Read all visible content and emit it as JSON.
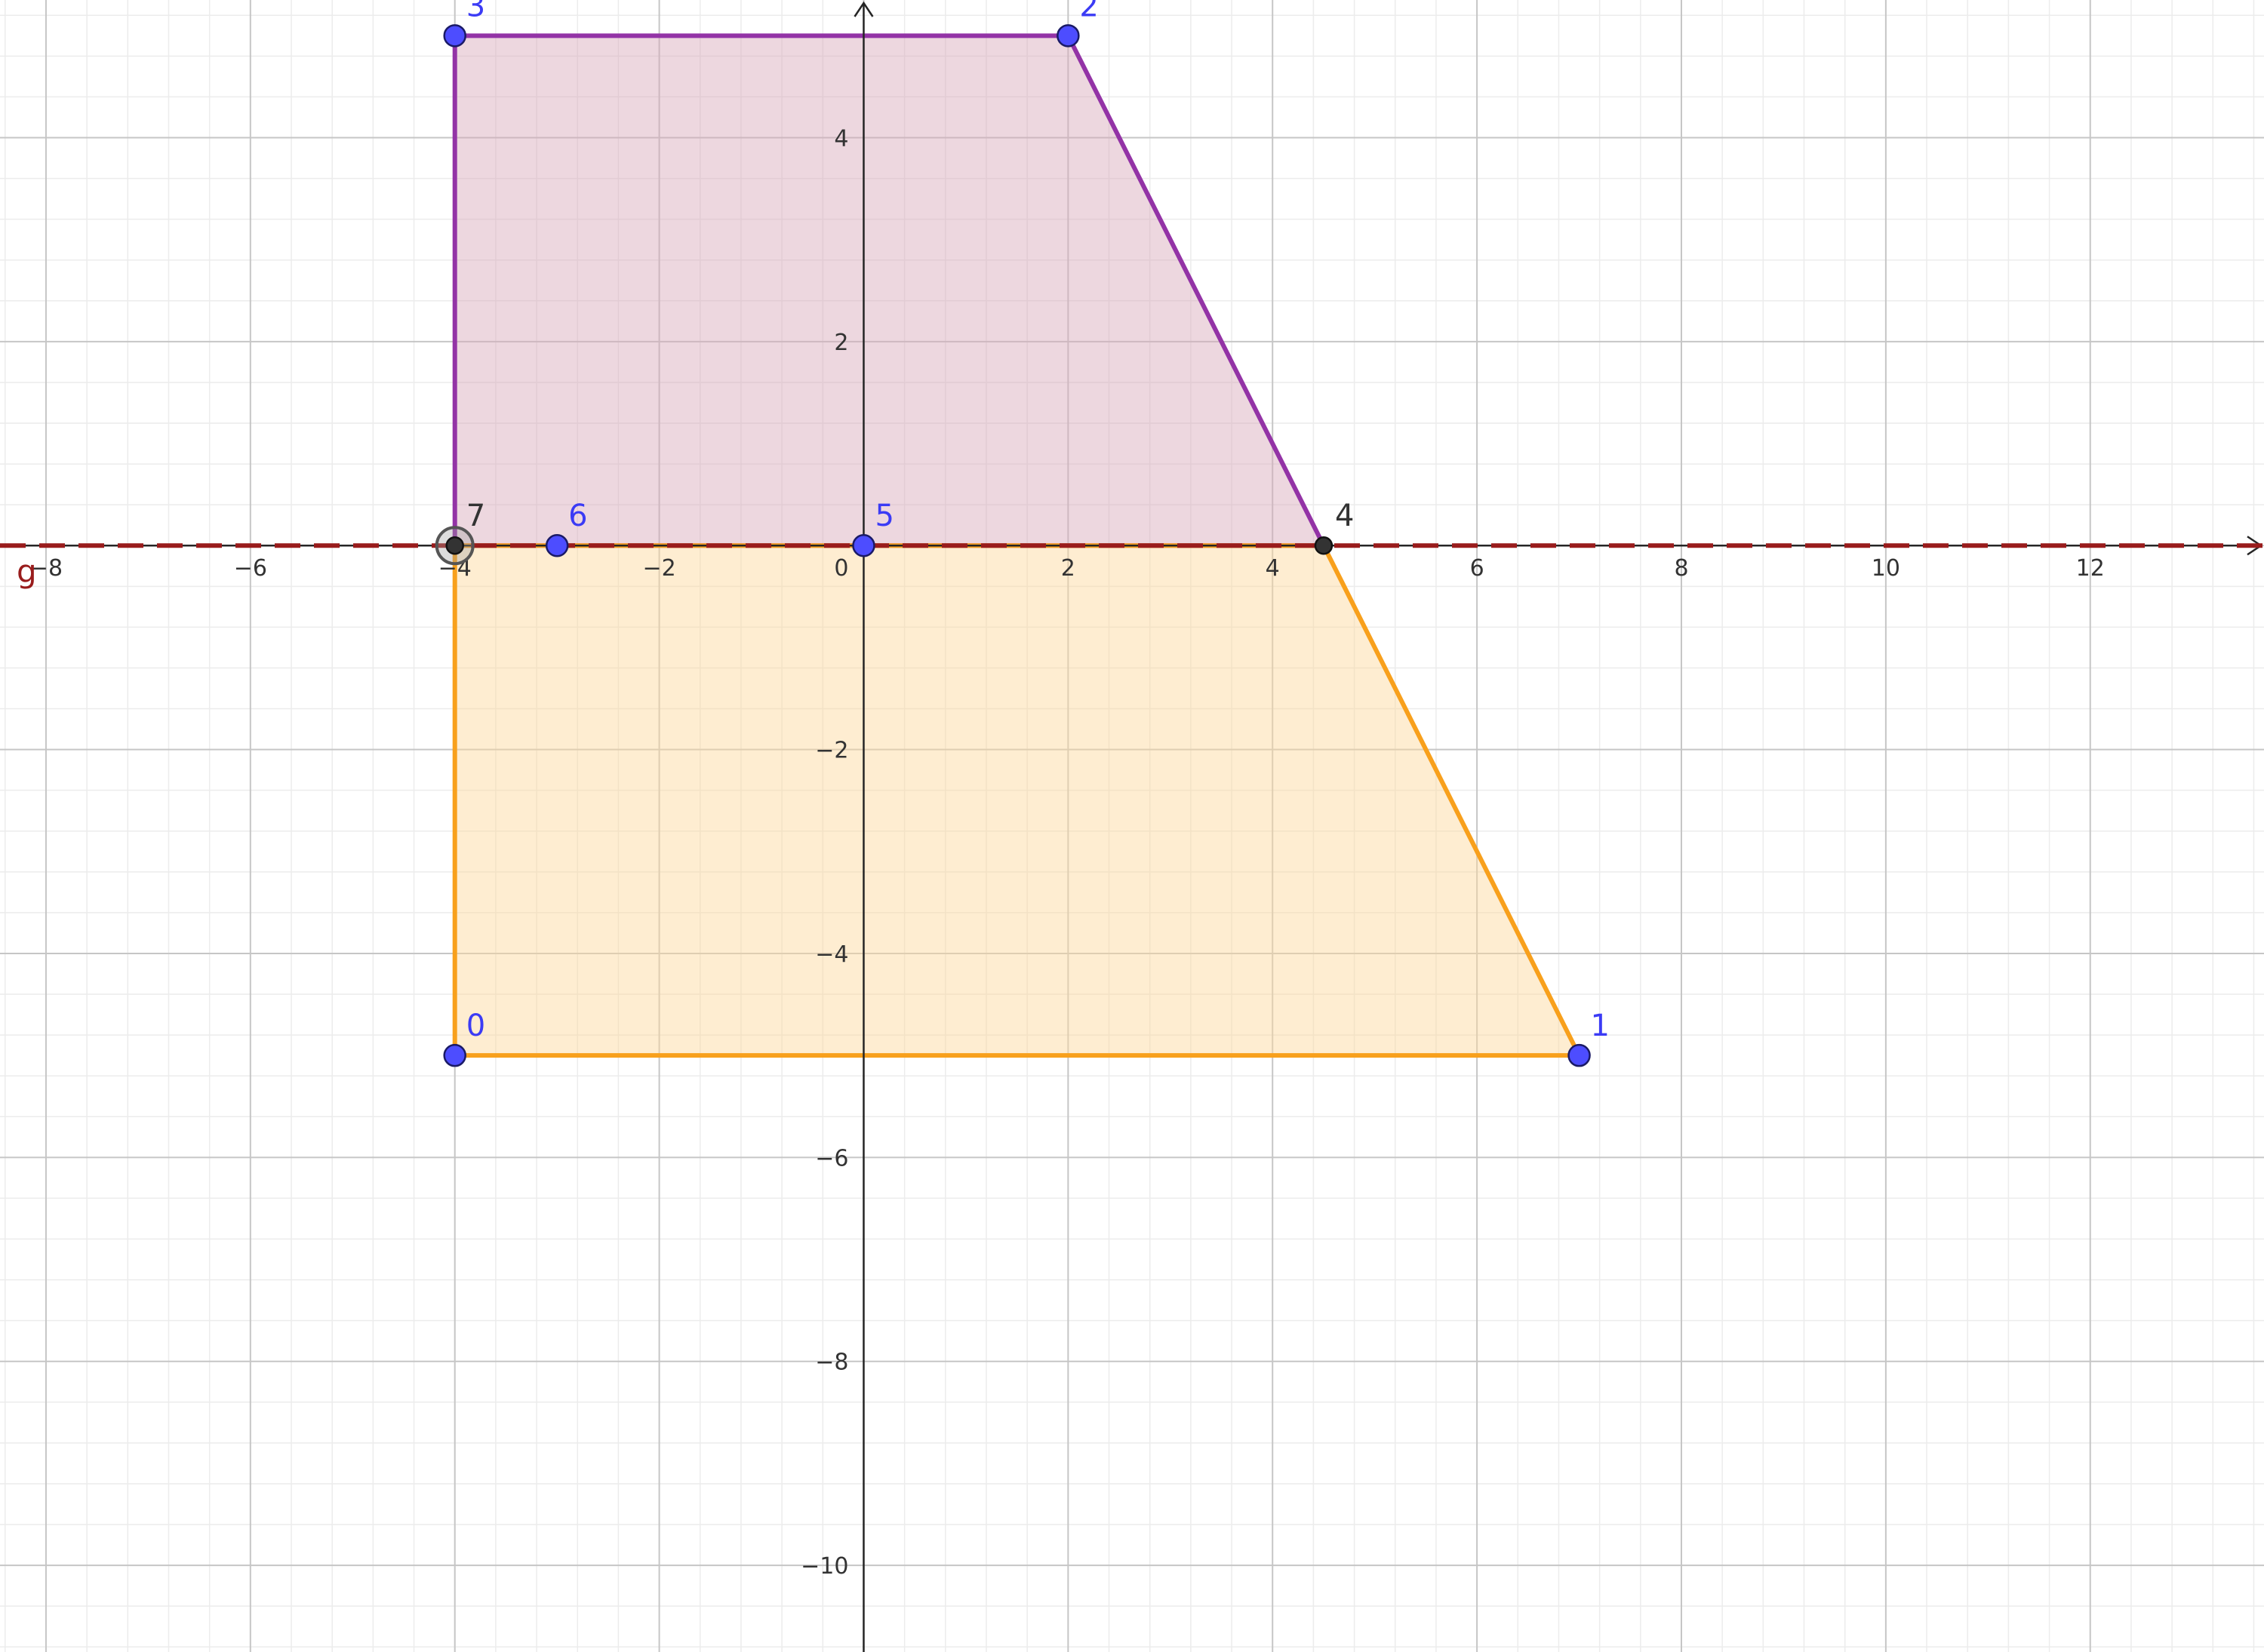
{
  "app": {
    "view": "graphics",
    "grid": {
      "major": 2,
      "minor": 0.4,
      "show": true
    }
  },
  "axes": {
    "x_range": [
      -8.45,
      13.7
    ],
    "y_range": [
      -10.85,
      5.35
    ],
    "x_ticks": [
      -8,
      -6,
      -4,
      -2,
      0,
      2,
      4,
      6,
      8,
      10,
      12
    ],
    "y_ticks": [
      -10,
      -8,
      -6,
      -4,
      -2,
      2,
      4
    ],
    "origin_label": "0"
  },
  "colors": {
    "grid_major": "#c6c6c6",
    "grid_minor": "#ececec",
    "axis": "#252525",
    "purple_stroke": "#9333a6",
    "purple_fill": "#d7a6b8",
    "orange_stroke": "#f8a01c",
    "orange_fill": "#fdd89a",
    "line_g": "#991c1c",
    "point_blue": "#4d4dff",
    "point_dark": "#333333",
    "label_blue": "#3b3bf5",
    "label_dark": "#333333"
  },
  "polygons": [
    {
      "name": "upper-quadrilateral",
      "vertices": [
        [
          -4,
          0
        ],
        [
          -4,
          5
        ],
        [
          2,
          5
        ],
        [
          4.5,
          0
        ]
      ],
      "stroke": "purple_stroke",
      "fill": "purple_fill"
    },
    {
      "name": "lower-quadrilateral",
      "vertices": [
        [
          -4,
          0
        ],
        [
          -4,
          -5
        ],
        [
          7,
          -5
        ],
        [
          4.5,
          0
        ]
      ],
      "stroke": "orange_stroke",
      "fill": "orange_fill"
    }
  ],
  "line_g": {
    "label": "g",
    "y": 0
  },
  "points": [
    {
      "label": "0",
      "x": -4,
      "y": -5,
      "kind": "free"
    },
    {
      "label": "1",
      "x": 7,
      "y": -5,
      "kind": "free"
    },
    {
      "label": "2",
      "x": 2,
      "y": 5,
      "kind": "free"
    },
    {
      "label": "3",
      "x": -4,
      "y": 5,
      "kind": "free"
    },
    {
      "label": "4",
      "x": 4.5,
      "y": 0,
      "kind": "dependent"
    },
    {
      "label": "5",
      "x": 0,
      "y": 0,
      "kind": "free"
    },
    {
      "label": "6",
      "x": -3,
      "y": 0,
      "kind": "free"
    },
    {
      "label": "7",
      "x": -4,
      "y": 0,
      "kind": "selected"
    }
  ]
}
